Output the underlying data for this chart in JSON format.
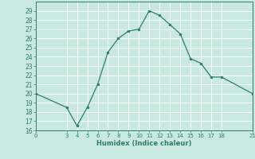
{
  "x": [
    0,
    3,
    4,
    5,
    6,
    7,
    8,
    9,
    10,
    11,
    12,
    13,
    14,
    15,
    16,
    17,
    18,
    21
  ],
  "y": [
    20,
    18.5,
    16.5,
    18.5,
    21,
    24.5,
    26,
    26.8,
    27,
    29,
    28.5,
    27.5,
    26.5,
    23.8,
    23.3,
    21.8,
    21.8,
    20
  ],
  "xlabel": "Humidex (Indice chaleur)",
  "xlim": [
    0,
    21
  ],
  "ylim": [
    16,
    30
  ],
  "xticks": [
    0,
    3,
    4,
    5,
    6,
    7,
    8,
    9,
    10,
    11,
    12,
    13,
    14,
    15,
    16,
    17,
    18,
    21
  ],
  "yticks": [
    16,
    17,
    18,
    19,
    20,
    21,
    22,
    23,
    24,
    25,
    26,
    27,
    28,
    29
  ],
  "line_color": "#2e7d6e",
  "bg_color": "#c8e8e0",
  "grid_color": "#ffffff",
  "tick_color": "#2e7d6e",
  "label_color": "#2e7d6e"
}
